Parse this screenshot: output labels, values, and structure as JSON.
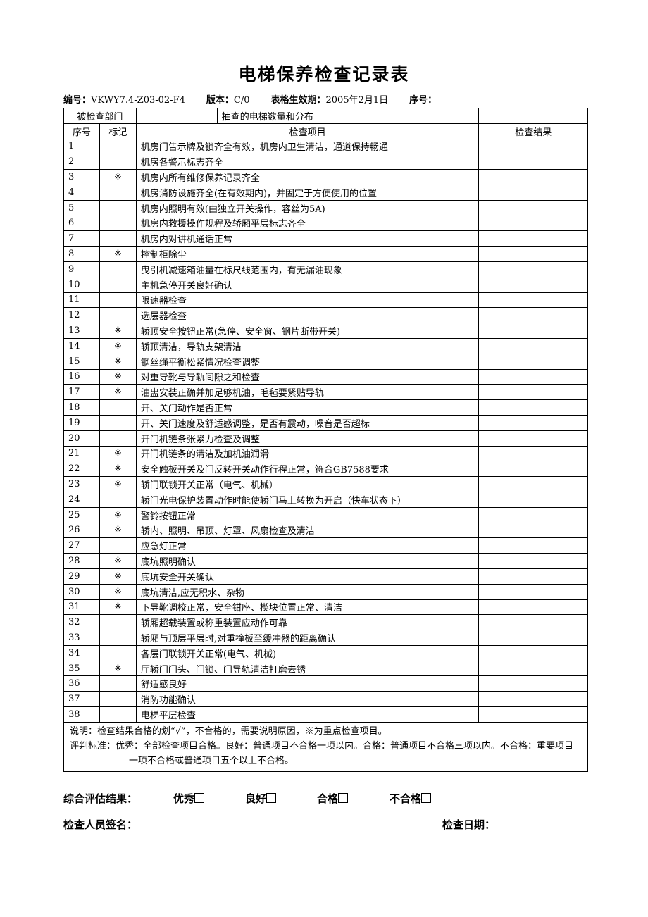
{
  "title": "电梯保养检查记录表",
  "meta": [
    {
      "label": "编号：",
      "value": "VKWY7.4-Z03-02-F4"
    },
    {
      "label": "版本：",
      "value": "C/0"
    },
    {
      "label": "表格生效期：",
      "value": "2005年2月1日"
    },
    {
      "label": "序号："
    }
  ],
  "table": {
    "dept_label": "被检查部门",
    "dist_label": "抽查的电梯数量和分布",
    "columns": [
      "序号",
      "标记",
      "检查项目",
      "检查结果"
    ],
    "rows": [
      {
        "no": 1,
        "item": "机房门告示牌及锁齐全有效，机房内卫生清洁，通道保持畅通"
      },
      {
        "no": 2,
        "item": "机房各警示标志齐全"
      },
      {
        "no": 3,
        "mark": "※",
        "item": "机房内所有维修保养记录齐全"
      },
      {
        "no": 4,
        "item": "机房消防设施齐全(在有效期内)，并固定于方便使用的位置"
      },
      {
        "no": 5,
        "item": "机房内照明有效(由独立开关操作，容丝为5A)"
      },
      {
        "no": 6,
        "item": "机房内救援操作规程及轿厢平层标志齐全"
      },
      {
        "no": 7,
        "item": "机房内对讲机通话正常"
      },
      {
        "no": 8,
        "mark": "※",
        "item": "控制柜除尘"
      },
      {
        "no": 9,
        "item": "曳引机减速箱油量在标尺线范围内，有无漏油现象"
      },
      {
        "no": 10,
        "item": "主机急停开关良好确认"
      },
      {
        "no": 11,
        "item": "限速器检查"
      },
      {
        "no": 12,
        "item": "选层器检查"
      },
      {
        "no": 13,
        "mark": "※",
        "item": "轿顶安全按钮正常(急停、安全窗、钢片断带开关)"
      },
      {
        "no": 14,
        "mark": "※",
        "item": "轿顶清洁，导轨支架清洁"
      },
      {
        "no": 15,
        "mark": "※",
        "item": "钢丝绳平衡松紧情况检查调整"
      },
      {
        "no": 16,
        "mark": "※",
        "item": "对重导靴与导轨间隙之和检查"
      },
      {
        "no": 17,
        "mark": "※",
        "item": "油盅安装正确并加足够机油，毛毡要紧贴导轨"
      },
      {
        "no": 18,
        "item": "开、关门动作是否正常"
      },
      {
        "no": 19,
        "item": "开、关门速度及舒适感调整，是否有震动，噪音是否超标"
      },
      {
        "no": 20,
        "item": "开门机链条张紧力检查及调整"
      },
      {
        "no": 21,
        "mark": "※",
        "item": "开门机链条的清洁及加机油润滑"
      },
      {
        "no": 22,
        "mark": "※",
        "item": "安全触板开关及门反转开关动作行程正常，符合GB7588要求"
      },
      {
        "no": 23,
        "mark": "※",
        "item": "轿门联锁开关正常（电气、机械）"
      },
      {
        "no": 24,
        "item": "轿门光电保护装置动作时能使轿门马上转换为开启（快车状态下）"
      },
      {
        "no": 25,
        "mark": "※",
        "item": "警铃按钮正常"
      },
      {
        "no": 26,
        "mark": "※",
        "item": "轿内、照明、吊顶、灯罩、风扇检查及清洁"
      },
      {
        "no": 27,
        "item": "应急灯正常"
      },
      {
        "no": 28,
        "mark": "※",
        "item": "底坑照明确认"
      },
      {
        "no": 29,
        "mark": "※",
        "item": "底坑安全开关确认"
      },
      {
        "no": 30,
        "mark": "※",
        "item": "底坑清洁,应无积水、杂物"
      },
      {
        "no": 31,
        "mark": "※",
        "item": "下导靴调校正常，安全钳座、楔块位置正常、清洁"
      },
      {
        "no": 32,
        "item": "轿厢超载装置或称重装置应动作可靠"
      },
      {
        "no": 33,
        "item": "轿厢与顶层平层时,对重撞板至缓冲器的距离确认"
      },
      {
        "no": 34,
        "item": "各层门联锁开关正常(电气、机械)"
      },
      {
        "no": 35,
        "mark": "※",
        "item": "厅轿门门头、门锁、门导轨清洁打磨去锈"
      },
      {
        "no": 36,
        "item": "舒适感良好"
      },
      {
        "no": 37,
        "item": "消防功能确认"
      },
      {
        "no": 38,
        "item": "电梯平层检查"
      }
    ],
    "notes": [
      "说明：检查结果合格的划“√”，不合格的，需要说明原因，※为重点检查项目。",
      "评判标准：优秀：全部检查项目合格。良好：普通项目不合格一项以内。合格：普通项目不合格三项以内。不合格：重要项目一项不合格或普通项目五个以上不合格。"
    ]
  },
  "footer": {
    "result_label": "综合评估结果：",
    "options": [
      "优秀",
      "良好",
      "合格",
      "不合格"
    ],
    "signature_label": "检查人员签名：",
    "date_label": "检查日期："
  }
}
